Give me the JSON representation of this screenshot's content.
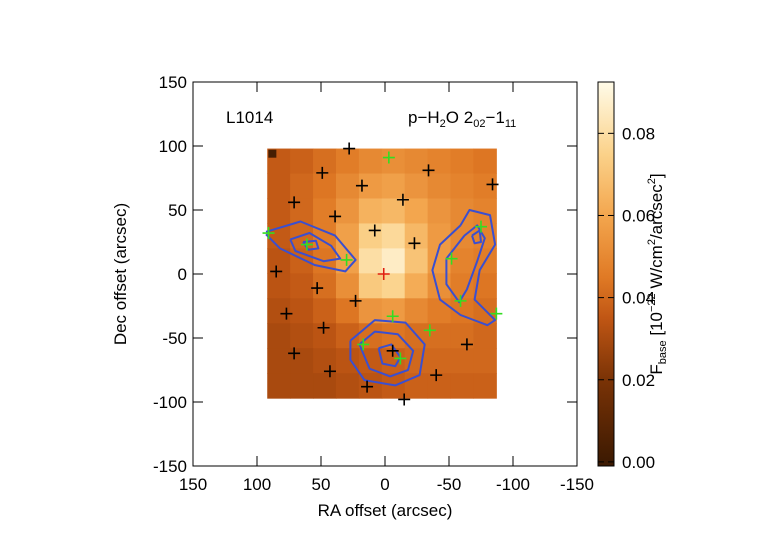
{
  "chart_data": {
    "type": "map",
    "annotation_left": "L1014",
    "annotation_right": [
      {
        "text": "p−H"
      },
      {
        "text": "2",
        "shift": "sub"
      },
      {
        "text": "O 2"
      },
      {
        "text": "02",
        "shift": "sub"
      },
      {
        "text": "−1"
      },
      {
        "text": "11",
        "shift": "sub"
      }
    ],
    "xlabel": "RA offset (arcsec)",
    "ylabel": "Dec offset (arcsec)",
    "xlim": [
      150,
      -150
    ],
    "ylim": [
      -150,
      150
    ],
    "xticks": [
      150,
      100,
      50,
      0,
      -50,
      -100,
      -150
    ],
    "yticks": [
      -150,
      -100,
      -50,
      0,
      50,
      100,
      150
    ],
    "image": {
      "ra_range": [
        92,
        -87
      ],
      "dec_range": [
        98,
        -97
      ],
      "values": [
        [
          0.036,
          0.038,
          0.042,
          0.046,
          0.05,
          0.052,
          0.05,
          0.048,
          0.046,
          0.044
        ],
        [
          0.036,
          0.04,
          0.044,
          0.05,
          0.056,
          0.058,
          0.054,
          0.05,
          0.048,
          0.046
        ],
        [
          0.036,
          0.04,
          0.046,
          0.054,
          0.064,
          0.066,
          0.06,
          0.054,
          0.05,
          0.048
        ],
        [
          0.036,
          0.04,
          0.046,
          0.058,
          0.074,
          0.078,
          0.066,
          0.056,
          0.05,
          0.048
        ],
        [
          0.034,
          0.038,
          0.044,
          0.058,
          0.08,
          0.086,
          0.07,
          0.056,
          0.048,
          0.046
        ],
        [
          0.034,
          0.036,
          0.042,
          0.052,
          0.072,
          0.076,
          0.062,
          0.052,
          0.046,
          0.044
        ],
        [
          0.032,
          0.034,
          0.038,
          0.044,
          0.054,
          0.056,
          0.05,
          0.046,
          0.044,
          0.042
        ],
        [
          0.03,
          0.032,
          0.034,
          0.038,
          0.042,
          0.044,
          0.042,
          0.042,
          0.042,
          0.04
        ],
        [
          0.03,
          0.03,
          0.032,
          0.034,
          0.036,
          0.038,
          0.04,
          0.04,
          0.04,
          0.04
        ],
        [
          0.03,
          0.03,
          0.03,
          0.032,
          0.034,
          0.036,
          0.038,
          0.038,
          0.038,
          0.038
        ]
      ],
      "corner_pixel": {
        "ra": 88,
        "dec": 94,
        "value": 0.003
      }
    },
    "colormap": {
      "values": [
        0,
        0.02,
        0.035,
        0.045,
        0.06,
        0.075,
        0.0925
      ],
      "colors": [
        "#3d1a02",
        "#7a3306",
        "#c05614",
        "#e07a25",
        "#f3a64e",
        "#fbd28a",
        "#fffbe8"
      ]
    },
    "clim": [
      -0.001,
      0.0925
    ],
    "cticks": [
      {
        "value": 0,
        "label": "0.00"
      },
      {
        "value": 0.02,
        "label": "0.02"
      },
      {
        "value": 0.04,
        "label": "0.04"
      },
      {
        "value": 0.06,
        "label": "0.06"
      },
      {
        "value": 0.08,
        "label": "0.08"
      }
    ],
    "colorbar_label": [
      {
        "text": "F"
      },
      {
        "text": "base",
        "shift": "sub"
      },
      {
        "text": " [10"
      },
      {
        "text": "−22",
        "shift": "sup"
      },
      {
        "text": " W/cm"
      },
      {
        "text": "2",
        "shift": "sup"
      },
      {
        "text": "/arcsec"
      },
      {
        "text": "2",
        "shift": "sup"
      },
      {
        "text": "]"
      }
    ],
    "contour_color": "#3a4fd0",
    "contours": [
      {
        "ra": [
          93,
          66,
          39,
          23,
          31,
          55,
          82,
          93
        ],
        "dec": [
          33,
          41,
          30,
          11,
          2,
          7,
          20,
          31
        ]
      },
      {
        "ra": [
          74,
          59,
          42,
          35,
          48,
          70,
          74
        ],
        "dec": [
          27,
          32,
          22,
          12,
          10,
          18,
          27
        ]
      },
      {
        "ra": [
          64,
          54,
          52,
          60,
          64
        ],
        "dec": [
          25,
          26,
          20,
          19,
          25
        ]
      },
      {
        "ra": [
          27,
          8,
          -16,
          -31,
          -27,
          -8,
          16,
          27,
          27
        ],
        "dec": [
          -52,
          -36,
          -38,
          -55,
          -79,
          -87,
          -83,
          -67,
          -52
        ]
      },
      {
        "ra": [
          20,
          8,
          -10,
          -22,
          -18,
          -4,
          12,
          20
        ],
        "dec": [
          -55,
          -45,
          -47,
          -60,
          -75,
          -80,
          -74,
          -55
        ]
      },
      {
        "ra": [
          5,
          -5,
          -12,
          -8,
          2,
          5
        ],
        "dec": [
          -58,
          -55,
          -65,
          -72,
          -70,
          -58
        ]
      },
      {
        "ra": [
          -59,
          -66,
          -82,
          -86,
          -74,
          -70,
          -86,
          -80,
          -59,
          -43,
          -37,
          -43,
          -59
        ],
        "dec": [
          38,
          50,
          46,
          23,
          3,
          -20,
          -36,
          -40,
          -32,
          -20,
          3,
          23,
          38
        ]
      },
      {
        "ra": [
          -62,
          -72,
          -78,
          -72,
          -64,
          -58,
          -48,
          -48,
          -62
        ],
        "dec": [
          30,
          38,
          28,
          10,
          -12,
          -22,
          -8,
          12,
          30
        ]
      },
      {
        "ra": [
          -68,
          -74,
          -75,
          -70,
          -68
        ],
        "dec": [
          30,
          34,
          25,
          24,
          30
        ]
      }
    ],
    "markers": [
      {
        "color": "#000000",
        "ra": [
          28,
          49,
          71,
          18,
          -34,
          -84,
          -14,
          39,
          8,
          -23,
          85,
          53,
          23,
          77,
          48,
          71,
          43,
          14,
          -15,
          -40,
          -64,
          -6
        ],
        "dec": [
          98,
          79,
          56,
          69,
          81,
          70,
          58,
          45,
          34,
          24,
          2,
          -11,
          -21,
          -31,
          -42,
          -62,
          -76,
          -88,
          -98,
          -79,
          -55,
          -60
        ]
      },
      {
        "color": "#33dd22",
        "ra": [
          -3,
          91,
          61,
          30,
          -52,
          -75,
          -59,
          -87,
          -35,
          -6,
          17,
          -12
        ],
        "dec": [
          91,
          32,
          23,
          11,
          12,
          37,
          -21,
          -31,
          -44,
          -33,
          -55,
          -66
        ]
      },
      {
        "color": "#e02010",
        "ra": [
          1
        ],
        "dec": [
          0
        ]
      }
    ]
  }
}
